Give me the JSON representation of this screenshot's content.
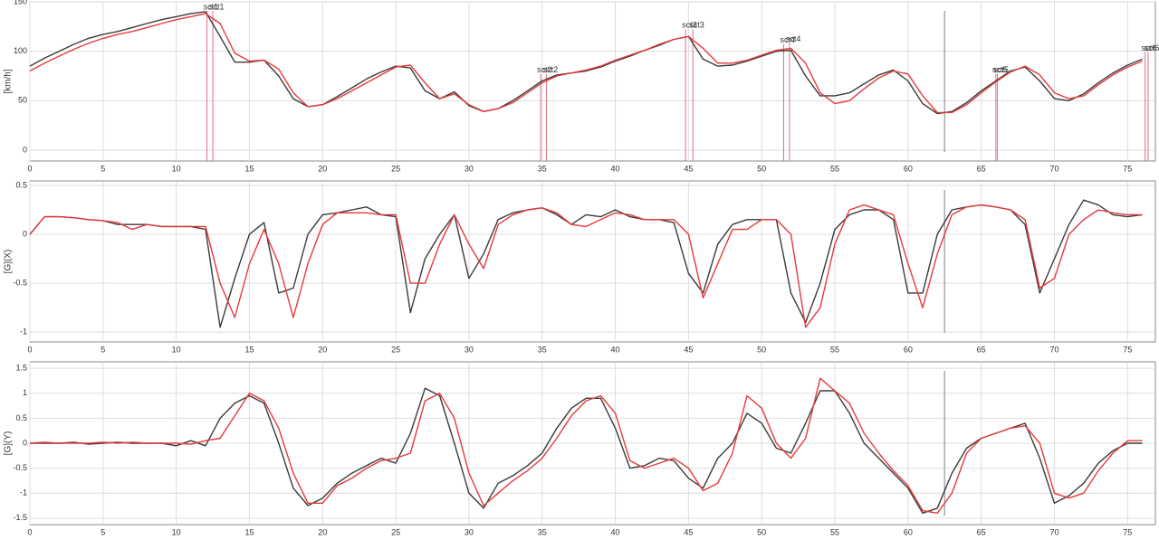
{
  "chart_data": [
    {
      "type": "line",
      "ylabel": "[km/h]",
      "xlim": [
        0,
        76.9
      ],
      "ylim": [
        -11,
        150
      ],
      "xticks": [
        0,
        5,
        10,
        15,
        20,
        25,
        30,
        35,
        40,
        45,
        50,
        55,
        60,
        65,
        70,
        75
      ],
      "yticks": [
        0,
        50,
        100,
        150
      ],
      "grid": true,
      "cursor_x": 62.5,
      "x": [
        0,
        1,
        2,
        3,
        4,
        5,
        6,
        7,
        8,
        9,
        10,
        11,
        12,
        13,
        14,
        15,
        16,
        17,
        18,
        19,
        20,
        21,
        22,
        23,
        24,
        25,
        26,
        27,
        28,
        29,
        30,
        31,
        32,
        33,
        34,
        35,
        36,
        37,
        38,
        39,
        40,
        41,
        42,
        43,
        44,
        45,
        46,
        47,
        48,
        49,
        50,
        51,
        52,
        53,
        54,
        55,
        56,
        57,
        58,
        59,
        60,
        61,
        62,
        63,
        64,
        65,
        66,
        67,
        68,
        69,
        70,
        71,
        72,
        73,
        74,
        75,
        76
      ],
      "series": [
        {
          "color": "#3a3a3a",
          "values": [
            85,
            93,
            100,
            107,
            113,
            117,
            120,
            124,
            128,
            132,
            135,
            138,
            140,
            115,
            89,
            89,
            91,
            75,
            52,
            44,
            46,
            54,
            63,
            72,
            79,
            85,
            83,
            60,
            52,
            59,
            45,
            39,
            42,
            50,
            60,
            70,
            76,
            78,
            80,
            84,
            90,
            95,
            101,
            106,
            112,
            115,
            92,
            85,
            86,
            90,
            95,
            100,
            101,
            75,
            55,
            55,
            58,
            67,
            76,
            81,
            70,
            47,
            37,
            39,
            48,
            60,
            70,
            80,
            84,
            70,
            52,
            50,
            57,
            68,
            78,
            86,
            92
          ]
        },
        {
          "color": "#e8393a",
          "values": [
            80,
            88,
            95,
            102,
            108,
            113,
            117,
            120,
            124,
            128,
            132,
            135,
            138,
            128,
            98,
            90,
            91,
            82,
            58,
            44,
            46,
            52,
            60,
            68,
            76,
            84,
            86,
            68,
            52,
            57,
            46,
            39,
            42,
            48,
            58,
            68,
            75,
            78,
            81,
            85,
            91,
            96,
            101,
            107,
            112,
            115,
            103,
            88,
            88,
            91,
            96,
            101,
            103,
            88,
            58,
            47,
            50,
            62,
            73,
            80,
            77,
            55,
            38,
            38,
            46,
            58,
            69,
            79,
            85,
            76,
            58,
            52,
            55,
            66,
            76,
            84,
            90
          ]
        }
      ],
      "markers": [
        {
          "x": 12.1,
          "label": "sct1"
        },
        {
          "x": 12.5,
          "label": "sct1"
        },
        {
          "x": 34.9,
          "label": "sct2"
        },
        {
          "x": 35.3,
          "label": "sct2"
        },
        {
          "x": 44.8,
          "label": "sct3"
        },
        {
          "x": 45.3,
          "label": "sct3"
        },
        {
          "x": 51.5,
          "label": "sct4"
        },
        {
          "x": 51.9,
          "label": "sct4"
        },
        {
          "x": 66.0,
          "label": "sct5"
        },
        {
          "x": 66.1,
          "label": "sct5"
        },
        {
          "x": 76.2,
          "label": "sct6"
        },
        {
          "x": 76.4,
          "label": "sct6"
        }
      ]
    },
    {
      "type": "line",
      "ylabel": "[G](X)",
      "xlim": [
        0,
        76.9
      ],
      "ylim": [
        -1.1,
        0.546
      ],
      "xticks": [
        0,
        5,
        10,
        15,
        20,
        25,
        30,
        35,
        40,
        45,
        50,
        55,
        60,
        65,
        70,
        75
      ],
      "yticks": [
        -1,
        -0.5,
        0,
        0.5
      ],
      "grid": true,
      "cursor_x": 62.5,
      "x": [
        0,
        1,
        2,
        3,
        4,
        5,
        6,
        7,
        8,
        9,
        10,
        11,
        12,
        13,
        14,
        15,
        16,
        17,
        18,
        19,
        20,
        21,
        22,
        23,
        24,
        25,
        26,
        27,
        28,
        29,
        30,
        31,
        32,
        33,
        34,
        35,
        36,
        37,
        38,
        39,
        40,
        41,
        42,
        43,
        44,
        45,
        46,
        47,
        48,
        49,
        50,
        51,
        52,
        53,
        54,
        55,
        56,
        57,
        58,
        59,
        60,
        61,
        62,
        63,
        64,
        65,
        66,
        67,
        68,
        69,
        70,
        71,
        72,
        73,
        74,
        75,
        76
      ],
      "series": [
        {
          "color": "#3a3a3a",
          "values": [
            0,
            0.18,
            0.18,
            0.17,
            0.15,
            0.14,
            0.1,
            0.1,
            0.1,
            0.08,
            0.08,
            0.08,
            0.05,
            -0.95,
            -0.45,
            0,
            0.12,
            -0.6,
            -0.55,
            0,
            0.2,
            0.22,
            0.25,
            0.28,
            0.2,
            0.18,
            -0.8,
            -0.25,
            0,
            0.2,
            -0.45,
            -0.2,
            0.15,
            0.22,
            0.25,
            0.27,
            0.2,
            0.1,
            0.2,
            0.18,
            0.25,
            0.18,
            0.15,
            0.15,
            0.12,
            -0.4,
            -0.6,
            -0.1,
            0.1,
            0.15,
            0.15,
            0.15,
            -0.6,
            -0.9,
            -0.5,
            0.05,
            0.2,
            0.25,
            0.25,
            0.15,
            -0.6,
            -0.6,
            0,
            0.25,
            0.28,
            0.3,
            0.28,
            0.25,
            0.1,
            -0.6,
            -0.25,
            0.1,
            0.35,
            0.3,
            0.2,
            0.18,
            0.2
          ]
        },
        {
          "color": "#e8393a",
          "values": [
            0,
            0.18,
            0.18,
            0.17,
            0.15,
            0.14,
            0.12,
            0.05,
            0.1,
            0.08,
            0.08,
            0.08,
            0.08,
            -0.5,
            -0.85,
            -0.3,
            0.05,
            -0.3,
            -0.85,
            -0.3,
            0.1,
            0.22,
            0.22,
            0.22,
            0.2,
            0.2,
            -0.5,
            -0.5,
            -0.1,
            0.2,
            -0.1,
            -0.35,
            0.1,
            0.2,
            0.25,
            0.27,
            0.22,
            0.1,
            0.08,
            0.15,
            0.22,
            0.2,
            0.15,
            0.15,
            0.15,
            0,
            -0.65,
            -0.3,
            0.05,
            0.05,
            0.15,
            0.15,
            0,
            -0.95,
            -0.75,
            -0.1,
            0.25,
            0.3,
            0.25,
            0.2,
            -0.3,
            -0.75,
            -0.2,
            0.2,
            0.28,
            0.3,
            0.28,
            0.25,
            0.15,
            -0.55,
            -0.45,
            0,
            0.15,
            0.25,
            0.22,
            0.2,
            0.2
          ]
        }
      ]
    },
    {
      "type": "line",
      "ylabel": "[G](Y)",
      "xlim": [
        0,
        76.9
      ],
      "ylim": [
        -1.63,
        1.63
      ],
      "xticks": [
        0,
        5,
        10,
        15,
        20,
        25,
        30,
        35,
        40,
        45,
        50,
        55,
        60,
        65,
        70,
        75
      ],
      "yticks": [
        -1.5,
        -1,
        -0.5,
        0,
        0.5,
        1,
        1.5
      ],
      "grid": true,
      "cursor_x": 62.5,
      "x": [
        0,
        1,
        2,
        3,
        4,
        5,
        6,
        7,
        8,
        9,
        10,
        11,
        12,
        13,
        14,
        15,
        16,
        17,
        18,
        19,
        20,
        21,
        22,
        23,
        24,
        25,
        26,
        27,
        28,
        29,
        30,
        31,
        32,
        33,
        34,
        35,
        36,
        37,
        38,
        39,
        40,
        41,
        42,
        43,
        44,
        45,
        46,
        47,
        48,
        49,
        50,
        51,
        52,
        53,
        54,
        55,
        56,
        57,
        58,
        59,
        60,
        61,
        62,
        63,
        64,
        65,
        66,
        67,
        68,
        69,
        70,
        71,
        72,
        73,
        74,
        75,
        76
      ],
      "series": [
        {
          "color": "#3a3a3a",
          "values": [
            0,
            0,
            0,
            0.02,
            -0.02,
            0,
            0.02,
            0,
            0,
            0,
            -0.05,
            0.05,
            -0.05,
            0.5,
            0.8,
            0.95,
            0.8,
            0,
            -0.9,
            -1.25,
            -1.1,
            -0.8,
            -0.6,
            -0.45,
            -0.3,
            -0.4,
            0.2,
            1.1,
            0.95,
            0,
            -1,
            -1.3,
            -0.8,
            -0.65,
            -0.45,
            -0.2,
            0.3,
            0.7,
            0.9,
            0.9,
            0.3,
            -0.5,
            -0.45,
            -0.3,
            -0.35,
            -0.7,
            -0.9,
            -0.3,
            0,
            0.6,
            0.4,
            -0.1,
            -0.2,
            0.4,
            1.05,
            1.05,
            0.6,
            0,
            -0.3,
            -0.6,
            -0.9,
            -1.4,
            -1.3,
            -0.6,
            -0.1,
            0.1,
            0.2,
            0.3,
            0.4,
            -0.3,
            -1.2,
            -1.05,
            -0.8,
            -0.4,
            -0.15,
            0,
            0
          ]
        },
        {
          "color": "#e8393a",
          "values": [
            0,
            0.02,
            0,
            0,
            0,
            0.02,
            0,
            0.02,
            0,
            0,
            0,
            -0.02,
            0.05,
            0.1,
            0.55,
            1,
            0.85,
            0.3,
            -0.6,
            -1.2,
            -1.2,
            -0.85,
            -0.7,
            -0.5,
            -0.35,
            -0.3,
            -0.2,
            0.85,
            1,
            0.5,
            -0.6,
            -1.25,
            -1,
            -0.75,
            -0.55,
            -0.3,
            0.1,
            0.55,
            0.85,
            0.95,
            0.6,
            -0.35,
            -0.5,
            -0.4,
            -0.3,
            -0.5,
            -0.95,
            -0.8,
            -0.2,
            0.95,
            0.7,
            0,
            -0.3,
            0.1,
            1.3,
            1.05,
            0.8,
            0.2,
            -0.2,
            -0.55,
            -0.85,
            -1.35,
            -1.4,
            -1,
            -0.2,
            0.1,
            0.2,
            0.3,
            0.35,
            0,
            -1,
            -1.1,
            -1,
            -0.55,
            -0.2,
            0.05,
            0.05
          ]
        }
      ]
    }
  ]
}
